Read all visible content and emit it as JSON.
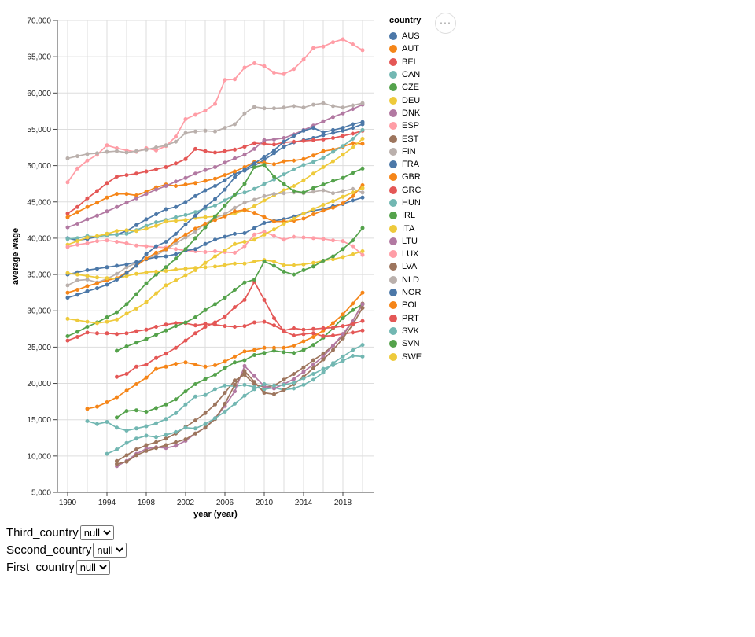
{
  "legend": {
    "title": "country"
  },
  "actions_button": {
    "label": "⋯",
    "icon_name": "ellipsis-menu-icon"
  },
  "controls": {
    "rows": [
      {
        "label": "Third_country",
        "value": "null"
      },
      {
        "label": "Second_country",
        "value": "null"
      },
      {
        "label": "First_country",
        "value": "null"
      }
    ]
  },
  "chart_data": {
    "type": "line",
    "point_overlay": true,
    "title": "",
    "xlabel": "year (year)",
    "ylabel": "average wage",
    "xlim": [
      1990,
      2020
    ],
    "ylim": [
      5000,
      70000
    ],
    "x_ticks": [
      1990,
      1994,
      1998,
      2002,
      2006,
      2010,
      2014,
      2018
    ],
    "y_tick_step": 5000,
    "grid": true,
    "legend_position": "right",
    "series": [
      {
        "name": "AUS",
        "color": "#4c78a8",
        "start_year": 1990,
        "values": [
          40000,
          39700,
          39900,
          40200,
          40600,
          40500,
          41000,
          41800,
          42600,
          43300,
          44000,
          44300,
          45000,
          45800,
          46600,
          47200,
          48000,
          48900,
          49300,
          50000,
          50800,
          51700,
          52600,
          53200,
          53500,
          53800,
          54200,
          54500,
          54800,
          55200,
          55700
        ]
      },
      {
        "name": "AUT",
        "color": "#f58518",
        "start_year": 1990,
        "values": [
          42900,
          43600,
          44300,
          44900,
          45600,
          46100,
          46100,
          45900,
          46400,
          47000,
          47400,
          47200,
          47400,
          47600,
          47900,
          48200,
          48700,
          49200,
          49800,
          50500,
          50400,
          50200,
          50600,
          50700,
          50900,
          51400,
          52000,
          52200,
          52600,
          53100,
          53000
        ]
      },
      {
        "name": "BEL",
        "color": "#e45756",
        "start_year": 1990,
        "values": [
          43400,
          44300,
          45500,
          46500,
          47600,
          48500,
          48700,
          48900,
          49200,
          49500,
          49800,
          50300,
          50900,
          52300,
          52000,
          51800,
          52000,
          52200,
          52600,
          53100,
          53000,
          52900,
          53200,
          53300,
          53400,
          53500,
          53600,
          53800,
          54100,
          54400,
          54800
        ]
      },
      {
        "name": "CAN",
        "color": "#72b7b2",
        "start_year": 1990,
        "values": [
          39900,
          40000,
          40300,
          40200,
          40400,
          40500,
          40600,
          41100,
          41700,
          42200,
          42500,
          42900,
          43200,
          43600,
          44100,
          44500,
          45200,
          46000,
          46300,
          46800,
          47500,
          48100,
          48800,
          49500,
          50100,
          50500,
          51100,
          51900,
          52700,
          53700,
          54900
        ]
      },
      {
        "name": "CZE",
        "color": "#54a24b",
        "start_year": 1995,
        "values": [
          15300,
          16200,
          16300,
          16100,
          16600,
          17100,
          17800,
          18900,
          19900,
          20600,
          21200,
          22100,
          22900,
          23200,
          23900,
          24200,
          24500,
          24300,
          24200,
          24600,
          25300,
          26300,
          27600,
          29000,
          30100,
          30900
        ]
      },
      {
        "name": "DEU",
        "color": "#eeca3b",
        "start_year": 1990,
        "values": [
          39100,
          39600,
          40100,
          40300,
          40600,
          41000,
          41100,
          41000,
          41300,
          41700,
          42300,
          42400,
          42500,
          42800,
          42900,
          43000,
          43200,
          43400,
          43800,
          44400,
          45200,
          45900,
          46600,
          47200,
          48000,
          48900,
          49800,
          50600,
          51500,
          52500,
          53700
        ]
      },
      {
        "name": "DNK",
        "color": "#b279a2",
        "start_year": 1990,
        "values": [
          41500,
          42000,
          42600,
          43100,
          43700,
          44300,
          44900,
          45500,
          46100,
          46700,
          47200,
          47800,
          48300,
          48900,
          49400,
          49800,
          50400,
          51000,
          51500,
          52300,
          53500,
          53600,
          53800,
          54300,
          54900,
          55500,
          56100,
          56700,
          57200,
          57800,
          58400
        ]
      },
      {
        "name": "ESP",
        "color": "#ff9da6",
        "start_year": 1990,
        "values": [
          38800,
          39100,
          39300,
          39600,
          39700,
          39500,
          39300,
          39000,
          38900,
          38800,
          38700,
          38500,
          38300,
          38200,
          38100,
          38200,
          38100,
          38000,
          38900,
          40500,
          40900,
          40300,
          39800,
          40200,
          40100,
          40000,
          39900,
          39700,
          39600,
          38900,
          37700
        ]
      },
      {
        "name": "EST",
        "color": "#9d755d",
        "start_year": 1995,
        "values": [
          9300,
          10100,
          10900,
          11500,
          11900,
          12400,
          13100,
          14000,
          14900,
          15900,
          17100,
          18700,
          20400,
          21200,
          19900,
          19500,
          19700,
          20500,
          21300,
          22200,
          23200,
          24100,
          25200,
          26600,
          28600,
          31000
        ]
      },
      {
        "name": "FIN",
        "color": "#bab0ac",
        "start_year": 1990,
        "values": [
          33500,
          34200,
          34300,
          33900,
          34400,
          35100,
          36000,
          36600,
          37100,
          37700,
          38400,
          39300,
          40100,
          40900,
          42000,
          42800,
          43300,
          44200,
          44900,
          45300,
          45800,
          46100,
          46200,
          46300,
          46200,
          46400,
          46600,
          46200,
          46500,
          46800,
          46300
        ]
      },
      {
        "name": "FRA",
        "color": "#4c78a8",
        "start_year": 1990,
        "values": [
          35000,
          35300,
          35600,
          35800,
          36000,
          36200,
          36400,
          36700,
          37100,
          37400,
          37500,
          37800,
          38300,
          38500,
          39200,
          39800,
          40200,
          40600,
          40700,
          41400,
          42100,
          42400,
          42600,
          43000,
          43400,
          43800,
          44000,
          44400,
          44700,
          45200,
          45600
        ]
      },
      {
        "name": "GBR",
        "color": "#f58518",
        "start_year": 1990,
        "values": [
          32500,
          32900,
          33400,
          33800,
          34200,
          34500,
          35300,
          36200,
          37200,
          38000,
          38500,
          39700,
          40500,
          41300,
          42000,
          42500,
          43000,
          43700,
          43900,
          43500,
          42900,
          42300,
          42300,
          42400,
          42700,
          43300,
          43800,
          44200,
          44800,
          45800,
          47300
        ]
      },
      {
        "name": "GRC",
        "color": "#e45756",
        "start_year": 1995,
        "values": [
          20900,
          21300,
          22300,
          22600,
          23500,
          24100,
          24900,
          25900,
          26900,
          27800,
          28400,
          29200,
          30500,
          31500,
          34000,
          31500,
          29000,
          27200,
          26600,
          26800,
          26900,
          26500,
          26600,
          26800,
          27000,
          27300
        ]
      },
      {
        "name": "HUN",
        "color": "#72b7b2",
        "start_year": 1992,
        "values": [
          14800,
          14400,
          14700,
          13900,
          13500,
          13800,
          14100,
          14500,
          15100,
          15900,
          17100,
          18200,
          18400,
          19200,
          19700,
          19600,
          19800,
          19500,
          19200,
          19400,
          19100,
          19300,
          19800,
          20500,
          21500,
          22800,
          23700,
          24600,
          25300
        ]
      },
      {
        "name": "IRL",
        "color": "#54a24b",
        "start_year": 1990,
        "values": [
          26500,
          27100,
          27800,
          28400,
          29100,
          29800,
          30900,
          32300,
          33800,
          35000,
          36000,
          37200,
          38500,
          40000,
          41500,
          43000,
          44500,
          46000,
          47500,
          49800,
          50100,
          48500,
          47500,
          46500,
          46300,
          46900,
          47400,
          47900,
          48300,
          49000,
          49600
        ]
      },
      {
        "name": "ITA",
        "color": "#eeca3b",
        "start_year": 1990,
        "values": [
          35200,
          35000,
          34800,
          34600,
          34500,
          34400,
          34800,
          35100,
          35300,
          35400,
          35500,
          35700,
          35800,
          35900,
          36000,
          36100,
          36300,
          36500,
          36500,
          36800,
          37000,
          36800,
          36300,
          36300,
          36400,
          36600,
          36900,
          37100,
          37400,
          37800,
          38200
        ]
      },
      {
        "name": "LTU",
        "color": "#b279a2",
        "start_year": 1995,
        "values": [
          8600,
          9300,
          10300,
          11000,
          11200,
          11100,
          11400,
          12100,
          13100,
          13900,
          15200,
          16900,
          18900,
          22400,
          21000,
          19600,
          19300,
          19900,
          20600,
          21600,
          22600,
          23700,
          25200,
          26800,
          28600,
          30900
        ]
      },
      {
        "name": "LUX",
        "color": "#ff9da6",
        "start_year": 1990,
        "values": [
          47700,
          49600,
          50700,
          51500,
          52800,
          52400,
          52100,
          51900,
          52400,
          52100,
          52700,
          54000,
          56400,
          57000,
          57600,
          58500,
          61800,
          61900,
          63500,
          64100,
          63700,
          62800,
          62600,
          63300,
          64600,
          66200,
          66400,
          67000,
          67400,
          66700,
          65900
        ]
      },
      {
        "name": "LVA",
        "color": "#9d755d",
        "start_year": 1995,
        "values": [
          8900,
          9200,
          10100,
          10700,
          11100,
          11500,
          11900,
          12300,
          13100,
          13900,
          15100,
          17200,
          19800,
          21700,
          20200,
          18700,
          18500,
          19100,
          19900,
          20900,
          22100,
          23300,
          24600,
          26200,
          28100,
          30400
        ]
      },
      {
        "name": "NLD",
        "color": "#bab0ac",
        "start_year": 1990,
        "values": [
          51000,
          51300,
          51600,
          51700,
          51900,
          52000,
          51800,
          52000,
          52200,
          52500,
          52800,
          53300,
          54500,
          54700,
          54800,
          54700,
          55200,
          55700,
          57200,
          58100,
          57900,
          57900,
          58000,
          58200,
          58000,
          58400,
          58600,
          58200,
          58000,
          58300,
          58600
        ]
      },
      {
        "name": "NOR",
        "color": "#4c78a8",
        "start_year": 1990,
        "values": [
          31800,
          32200,
          32700,
          33100,
          33600,
          34300,
          35200,
          36200,
          37800,
          38900,
          39500,
          40600,
          41900,
          43100,
          44300,
          45400,
          46700,
          48400,
          49500,
          50300,
          51200,
          52100,
          53300,
          54100,
          54800,
          55200,
          54600,
          54900,
          55200,
          55700,
          56000
        ]
      },
      {
        "name": "POL",
        "color": "#f58518",
        "start_year": 1992,
        "values": [
          16500,
          16800,
          17400,
          18100,
          19000,
          19900,
          20800,
          22000,
          22300,
          22700,
          22900,
          22600,
          22300,
          22500,
          23000,
          23700,
          24400,
          24600,
          24900,
          24900,
          24900,
          25200,
          25800,
          26400,
          27300,
          28300,
          29500,
          31000,
          32500
        ]
      },
      {
        "name": "PRT",
        "color": "#e45756",
        "start_year": 1990,
        "values": [
          25900,
          26400,
          27000,
          26900,
          26900,
          26800,
          26900,
          27200,
          27400,
          27800,
          28100,
          28300,
          28300,
          28000,
          28200,
          28100,
          27900,
          27800,
          27900,
          28400,
          28500,
          28000,
          27300,
          27600,
          27400,
          27500,
          27600,
          27700,
          27900,
          28200,
          28600
        ]
      },
      {
        "name": "SVK",
        "color": "#72b7b2",
        "start_year": 1994,
        "values": [
          10300,
          10900,
          11800,
          12400,
          12800,
          12600,
          12900,
          13300,
          13900,
          13800,
          14400,
          15200,
          16100,
          17200,
          18300,
          19200,
          19900,
          19700,
          19800,
          20100,
          20700,
          21300,
          22000,
          22500,
          23100,
          23800,
          23700
        ]
      },
      {
        "name": "SVN",
        "color": "#54a24b",
        "start_year": 1995,
        "values": [
          24500,
          25100,
          25600,
          26100,
          26700,
          27300,
          27900,
          28400,
          29100,
          30100,
          30900,
          31800,
          32900,
          33900,
          34300,
          36800,
          36200,
          35400,
          35000,
          35600,
          36100,
          36900,
          37500,
          38500,
          39700,
          41400
        ]
      },
      {
        "name": "SWE",
        "color": "#eeca3b",
        "start_year": 1990,
        "values": [
          28900,
          28700,
          28500,
          28300,
          28500,
          28800,
          29600,
          30300,
          31200,
          32400,
          33500,
          34200,
          34900,
          35600,
          36600,
          37500,
          38300,
          39200,
          39500,
          39800,
          40500,
          41200,
          42000,
          42700,
          43400,
          44000,
          44600,
          45100,
          45700,
          46300,
          46900
        ]
      }
    ]
  }
}
